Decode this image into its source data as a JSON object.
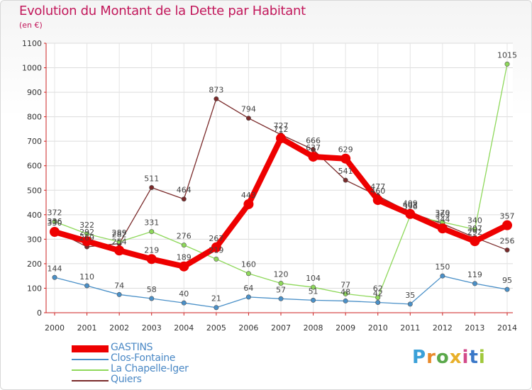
{
  "header": {
    "title": "Evolution du Montant de la Dette par Habitant",
    "subtitle": "(en €)"
  },
  "logo": {
    "text": "Proxiti",
    "letter_colors": [
      "#3aa0d8",
      "#e88a2a",
      "#5aa84a",
      "#e8b02a",
      "#d24a8a",
      "#3a78c8",
      "#a0c83a"
    ]
  },
  "chart_data": {
    "type": "line",
    "title": "Evolution du Montant de la Dette par Habitant",
    "subtitle": "(en €)",
    "x": [
      "2000",
      "2001",
      "2002",
      "2003",
      "2004",
      "2005",
      "2006",
      "2007",
      "2008",
      "2009",
      "2010",
      "2011",
      "2012",
      "2013",
      "2014"
    ],
    "ylim": [
      0,
      1100
    ],
    "yticks": [
      0,
      100,
      200,
      300,
      400,
      500,
      600,
      700,
      800,
      900,
      1000,
      1100
    ],
    "grid": true,
    "legend_position": "bottom-left",
    "series": [
      {
        "name": "Quiers",
        "color": "#7a2a2a",
        "values": [
          336,
          269,
          282,
          511,
          464,
          873,
          794,
          727,
          666,
          541,
          477,
          409,
          363,
          307,
          256
        ],
        "labels": [
          "336",
          "269",
          "282",
          "511",
          "464",
          "873",
          "794",
          "727",
          "666",
          "541",
          "477",
          "409",
          "363",
          "307",
          "256"
        ]
      },
      {
        "name": "La Chapelle-Iger",
        "color": "#8ed85a",
        "values": [
          372,
          322,
          289,
          331,
          276,
          219,
          160,
          120,
          104,
          77,
          62,
          396,
          370,
          340,
          1015
        ],
        "labels": [
          "372",
          "322",
          "289",
          "331",
          "276",
          "219",
          "160",
          "120",
          "104",
          "77",
          "62",
          "396",
          "370",
          "340",
          "1015"
        ]
      },
      {
        "name": "Clos-Fontaine",
        "color": "#4a90c8",
        "values": [
          144,
          110,
          74,
          58,
          40,
          21,
          64,
          57,
          51,
          48,
          42,
          35,
          150,
          119,
          95
        ],
        "labels": [
          "144",
          "110",
          "74",
          "58",
          "40",
          "21",
          "64",
          "57",
          "51",
          "48",
          "42",
          "35",
          "150",
          "119",
          "95"
        ]
      },
      {
        "name": "GASTINS",
        "color": "#ee0000",
        "values": [
          330,
          292,
          254,
          219,
          189,
          267,
          443,
          712,
          637,
          629,
          460,
          403,
          344,
          292,
          357
        ],
        "labels": [
          "330",
          "292",
          "254",
          "219",
          "189",
          "267",
          "443",
          "712",
          "637",
          "629",
          "460",
          "403",
          "344",
          "292",
          "357"
        ]
      }
    ]
  },
  "legend": {
    "items": [
      {
        "name": "GASTINS",
        "color": "#ee0000",
        "thick": true
      },
      {
        "name": "Clos-Fontaine",
        "color": "#4a90c8",
        "thick": false
      },
      {
        "name": "La Chapelle-Iger",
        "color": "#8ed85a",
        "thick": false
      },
      {
        "name": "Quiers",
        "color": "#7a2a2a",
        "thick": false
      }
    ]
  }
}
